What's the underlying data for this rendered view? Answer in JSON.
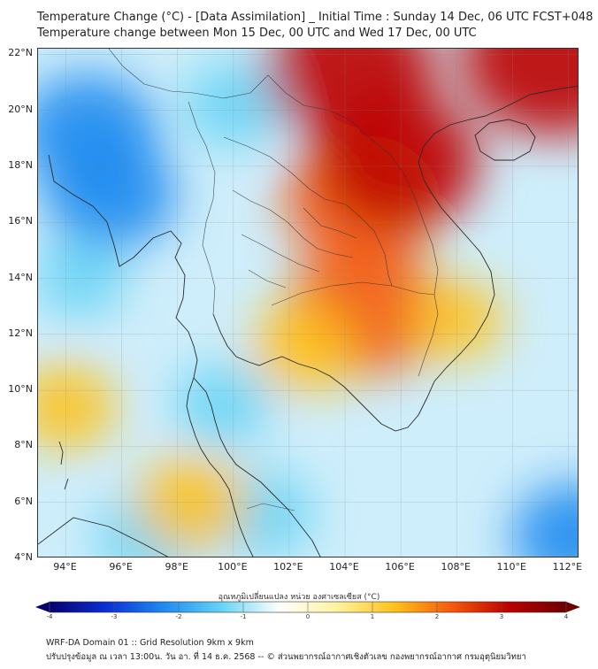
{
  "title_line1": "Temperature Change (°C) - [Data Assimilation] _ Initial Time : Sunday 14 Dec, 06 UTC FCST+048",
  "title_line2": "Temperature change between Mon 15 Dec, 00 UTC and Wed 17 Dec, 00 UTC",
  "map": {
    "lat_range": [
      4,
      22.2
    ],
    "lon_range": [
      93,
      112.4
    ],
    "lat_labels": [
      {
        "value": 22,
        "text": "22°N"
      },
      {
        "value": 20,
        "text": "20°N"
      },
      {
        "value": 18,
        "text": "18°N"
      },
      {
        "value": 16,
        "text": "16°N"
      },
      {
        "value": 14,
        "text": "14°N"
      },
      {
        "value": 12,
        "text": "12°N"
      },
      {
        "value": 10,
        "text": "10°N"
      },
      {
        "value": 8,
        "text": "8°N"
      },
      {
        "value": 6,
        "text": "6°N"
      },
      {
        "value": 4,
        "text": "4°N"
      }
    ],
    "lon_labels": [
      {
        "value": 94,
        "text": "94°E"
      },
      {
        "value": 96,
        "text": "96°E"
      },
      {
        "value": 98,
        "text": "98°E"
      },
      {
        "value": 100,
        "text": "100°E"
      },
      {
        "value": 102,
        "text": "102°E"
      },
      {
        "value": 104,
        "text": "104°E"
      },
      {
        "value": 106,
        "text": "106°E"
      },
      {
        "value": 108,
        "text": "108°E"
      },
      {
        "value": 110,
        "text": "110°E"
      },
      {
        "value": 112,
        "text": "112°E"
      }
    ],
    "field_blobs": [
      {
        "name": "cooling-myanmar-north",
        "lon": 94.8,
        "lat": 19.2,
        "value": -2.2
      },
      {
        "name": "cooling-myanmar-coast",
        "lon": 95.6,
        "lat": 17.0,
        "value": -2.0
      },
      {
        "name": "cooling-andaman",
        "lon": 94.5,
        "lat": 14.0,
        "value": -1.0
      },
      {
        "name": "cooling-shan",
        "lon": 100.0,
        "lat": 20.2,
        "value": -1.2
      },
      {
        "name": "cooling-gulf-west",
        "lon": 99.6,
        "lat": 9.5,
        "value": -1.1
      },
      {
        "name": "cooling-malaya",
        "lon": 101.0,
        "lat": 5.6,
        "value": -1.3
      },
      {
        "name": "cooling-sumatra",
        "lon": 97.0,
        "lat": 4.8,
        "value": -1.4
      },
      {
        "name": "cooling-se",
        "lon": 112.2,
        "lat": 4.8,
        "value": -1.8
      },
      {
        "name": "warming-south-china",
        "lon": 104.2,
        "lat": 21.4,
        "value": 3.0
      },
      {
        "name": "warming-northeast-corner",
        "lon": 111.5,
        "lat": 21.9,
        "value": 3.4
      },
      {
        "name": "warming-laos",
        "lon": 104.6,
        "lat": 16.8,
        "value": 2.6
      },
      {
        "name": "warming-vietnam-coast",
        "lon": 105.9,
        "lat": 18.2,
        "value": 2.8
      },
      {
        "name": "warming-cambodia",
        "lon": 104.7,
        "lat": 12.9,
        "value": 2.6
      },
      {
        "name": "warming-gulf",
        "lon": 102.5,
        "lat": 11.5,
        "value": 1.3
      },
      {
        "name": "warming-southern-thailand",
        "lon": 98.5,
        "lat": 6.0,
        "value": 1.5
      },
      {
        "name": "warming-south-china-sea",
        "lon": 108.0,
        "lat": 12.5,
        "value": 1.0
      },
      {
        "name": "warming-andaman-south",
        "lon": 94.0,
        "lat": 9.4,
        "value": 1.2
      }
    ]
  },
  "colorbar": {
    "title": "อุณหภูมิเปลี่ยนแปลง หน่วย องศาเซลเซียส (°C)",
    "min": -4,
    "max": 4,
    "tick_labels": [
      "-4",
      "-3",
      "-2",
      "-1",
      "0",
      "1",
      "2",
      "3",
      "4"
    ],
    "colors": [
      "#08006e",
      "#0a2fd6",
      "#1f8cf0",
      "#66d4f5",
      "#ffffff",
      "#fff3a0",
      "#ffc21a",
      "#f55a0c",
      "#bc0000",
      "#6e0000"
    ]
  },
  "footer": {
    "line1": "WRF-DA Domain 01 :: Grid Resolution 9km x 9km",
    "line2": "ปรับปรุงข้อมูล ณ เวลา 13:00น. วัน อา. ที่ 14 ธ.ค. 2568 -- © ส่วนพยากรณ์อากาศเชิงตัวเลข กองพยากรณ์อากาศ กรมอุตุนิยมวิทยา"
  }
}
